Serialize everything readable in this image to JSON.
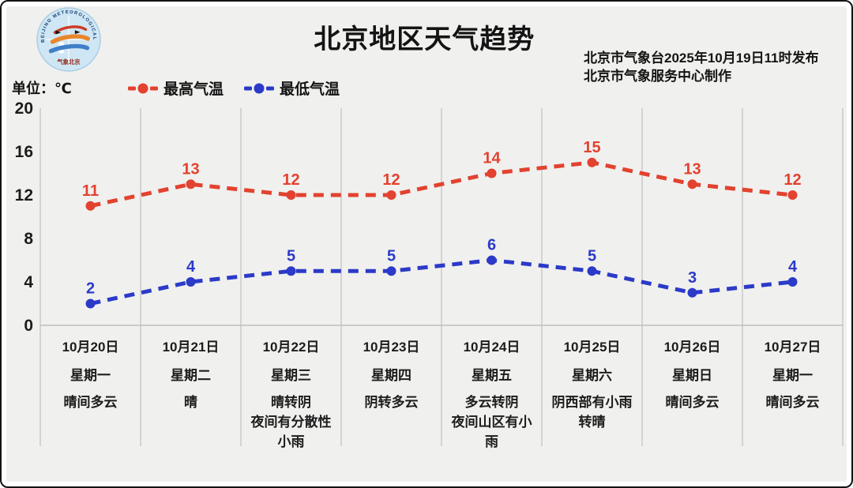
{
  "header": {
    "title": "北京地区天气趋势",
    "issued": "北京市气象台2025年10月19日11时发布",
    "producer": "北京市气象服务中心制作",
    "unit_label": "单位：℃",
    "logo": {
      "ring_text": "BEIJING METEOROLOGICAL SERVICE",
      "bottom_text": "气象北京"
    }
  },
  "legend": [
    {
      "label": "最高气温",
      "color": "#e2422f"
    },
    {
      "label": "最低气温",
      "color": "#2b3ac8"
    }
  ],
  "chart_data": {
    "type": "line",
    "title": "北京地区天气趋势",
    "unit": "℃",
    "ylim": [
      0,
      20
    ],
    "yticks": [
      20,
      16,
      12,
      8,
      4,
      0
    ],
    "grid": "vertical",
    "legend_position": "top",
    "categories": [
      "10月20日",
      "10月21日",
      "10月22日",
      "10月23日",
      "10月24日",
      "10月25日",
      "10月26日",
      "10月27日"
    ],
    "series": [
      {
        "name": "最高气温",
        "color": "#e2422f",
        "values": [
          11,
          13,
          12,
          12,
          14,
          15,
          13,
          12
        ]
      },
      {
        "name": "最低气温",
        "color": "#2b3ac8",
        "values": [
          2,
          4,
          5,
          5,
          6,
          5,
          3,
          4
        ]
      }
    ],
    "days": [
      {
        "date": "10月20日",
        "weekday": "星期一",
        "weather": [
          "晴间多云"
        ]
      },
      {
        "date": "10月21日",
        "weekday": "星期二",
        "weather": [
          "晴"
        ]
      },
      {
        "date": "10月22日",
        "weekday": "星期三",
        "weather": [
          "晴转阴",
          "夜间有分散性",
          "小雨"
        ]
      },
      {
        "date": "10月23日",
        "weekday": "星期四",
        "weather": [
          "阴转多云"
        ]
      },
      {
        "date": "10月24日",
        "weekday": "星期五",
        "weather": [
          "多云转阴",
          "夜间山区有小",
          "雨"
        ]
      },
      {
        "date": "10月25日",
        "weekday": "星期六",
        "weather": [
          "阴西部有小雨",
          "转晴"
        ]
      },
      {
        "date": "10月26日",
        "weekday": "星期日",
        "weather": [
          "晴间多云"
        ]
      },
      {
        "date": "10月27日",
        "weekday": "星期一",
        "weather": [
          "晴间多云"
        ]
      }
    ]
  }
}
